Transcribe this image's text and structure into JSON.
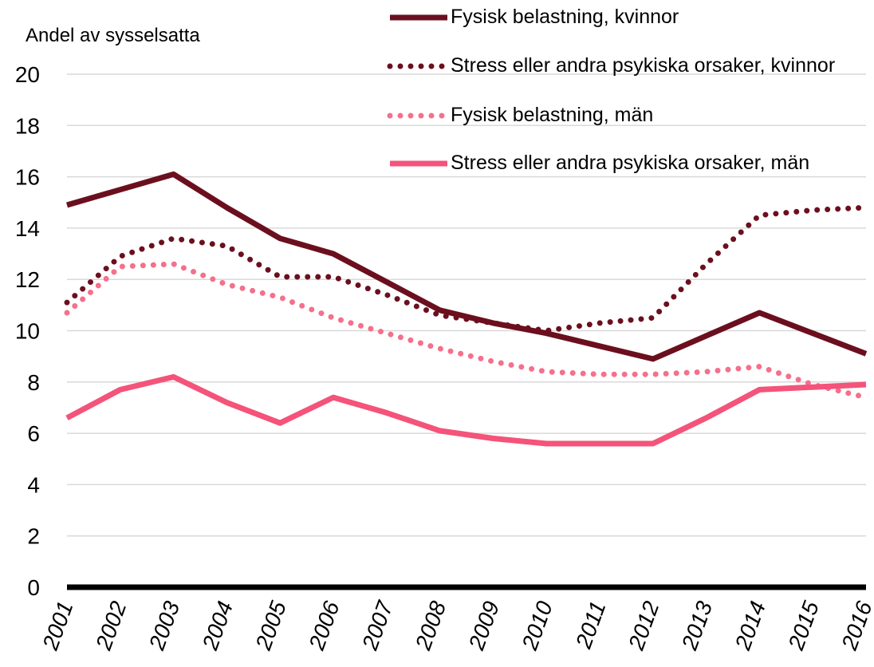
{
  "chart_data": {
    "type": "line",
    "y_label": "Andel av sysselsatta",
    "categories": [
      "2001",
      "2002",
      "2003",
      "2004",
      "2005",
      "2006",
      "2007",
      "2008",
      "2009",
      "2010",
      "2011",
      "2012",
      "2013",
      "2014",
      "2015",
      "2016"
    ],
    "series": [
      {
        "name": "Fysisk belastning, kvinnor",
        "color": "#6b0f1e",
        "style": "solid",
        "values": [
          14.9,
          15.5,
          16.1,
          14.8,
          13.6,
          13.0,
          11.9,
          10.8,
          10.3,
          9.9,
          9.4,
          8.9,
          9.8,
          10.7,
          9.9,
          9.1
        ]
      },
      {
        "name": "Stress eller andra psykiska orsaker, kvinnor",
        "color": "#6b0f1e",
        "style": "dotted",
        "values": [
          11.1,
          12.9,
          13.6,
          13.3,
          12.1,
          12.1,
          11.4,
          10.6,
          10.3,
          10.0,
          10.3,
          10.5,
          12.6,
          14.5,
          14.7,
          14.8
        ]
      },
      {
        "name": "Fysisk belastning, män",
        "color": "#f4708b",
        "style": "dotted",
        "values": [
          10.7,
          12.5,
          12.6,
          11.8,
          11.3,
          10.5,
          9.9,
          9.3,
          8.8,
          8.4,
          8.3,
          8.3,
          8.4,
          8.6,
          7.9,
          7.4
        ]
      },
      {
        "name": "Stress eller andra psykiska orsaker, män",
        "color": "#f4537a",
        "style": "solid",
        "values": [
          6.6,
          7.7,
          8.2,
          7.2,
          6.4,
          7.4,
          6.8,
          6.1,
          5.8,
          5.6,
          5.6,
          5.6,
          6.6,
          7.7,
          7.8,
          7.9
        ]
      }
    ],
    "ylim": [
      0,
      20
    ],
    "yticks": [
      0,
      2,
      4,
      6,
      8,
      10,
      12,
      14,
      16,
      18,
      20
    ],
    "grid": true,
    "legend": "top-right"
  }
}
